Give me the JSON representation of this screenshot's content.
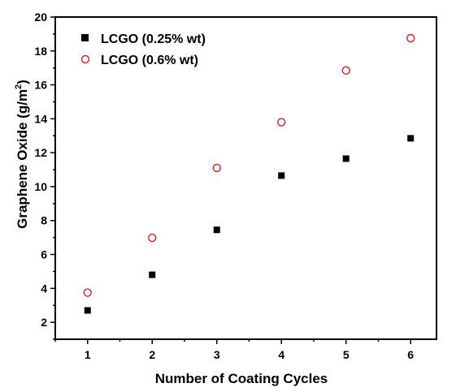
{
  "chart_data": {
    "type": "scatter",
    "title": "",
    "xlabel": "Number of Coating Cycles",
    "ylabel_main": "Graphene Oxide (g/m",
    "ylabel_sup": "2",
    "ylabel_close": ")",
    "xlim": [
      0.5,
      6.4
    ],
    "ylim": [
      1,
      20
    ],
    "xticks": [
      1,
      2,
      3,
      4,
      5,
      6
    ],
    "yticks": [
      2,
      4,
      6,
      8,
      10,
      12,
      14,
      16,
      18,
      20
    ],
    "grid": false,
    "legend_position": "top-left",
    "series": [
      {
        "name": "LCGO (0.25% wt)",
        "marker": "filled-square",
        "color": "#000000",
        "x": [
          1,
          2,
          3,
          4,
          5,
          6
        ],
        "y": [
          2.7,
          4.8,
          7.45,
          10.65,
          11.65,
          12.85
        ]
      },
      {
        "name": "LCGO (0.6% wt)",
        "marker": "open-circle",
        "color": "#d42020",
        "x": [
          1,
          2,
          3,
          4,
          5,
          6
        ],
        "y": [
          3.75,
          6.98,
          11.1,
          13.8,
          16.85,
          18.75
        ]
      }
    ]
  }
}
